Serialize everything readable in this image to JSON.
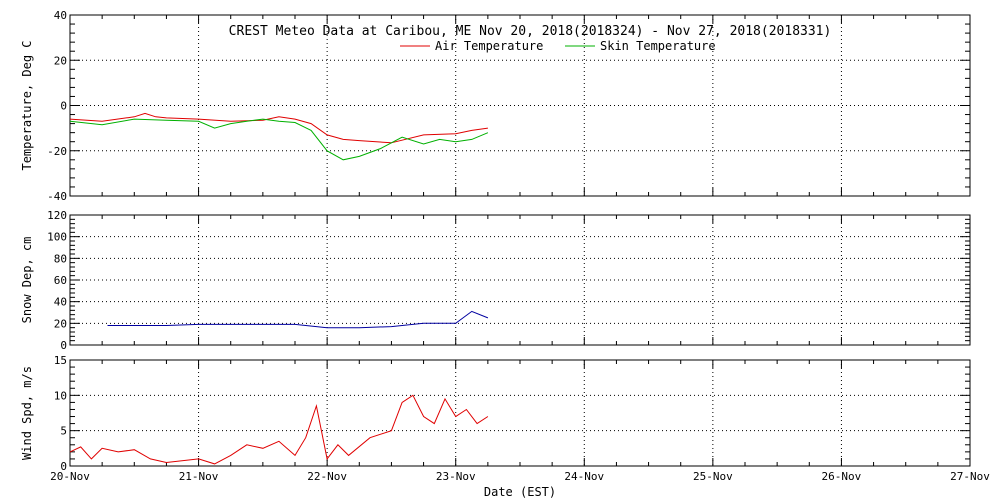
{
  "chart_data": {
    "type": "line",
    "title": "CREST Meteo Data at Caribou, ME   Nov 20, 2018(2018324) - Nov 27, 2018(2018331)",
    "xlabel": "Date (EST)",
    "x_ticks": [
      "20-Nov",
      "21-Nov",
      "22-Nov",
      "23-Nov",
      "24-Nov",
      "25-Nov",
      "26-Nov",
      "27-Nov"
    ],
    "xlim": [
      "2018-11-20",
      "2018-11-27"
    ],
    "grid": true,
    "panels": [
      {
        "ylabel": "Temperature, Deg C",
        "ylim": [
          -40,
          40
        ],
        "yticks": [
          -40,
          -20,
          0,
          20,
          40
        ],
        "legend": "top-center",
        "series": [
          {
            "name": "Air Temperature",
            "color": "#e00000",
            "x": [
              "2018-11-20 00:00",
              "2018-11-20 06:00",
              "2018-11-20 12:00",
              "2018-11-20 14:00",
              "2018-11-20 16:00",
              "2018-11-20 18:00",
              "2018-11-21 00:00",
              "2018-11-21 06:00",
              "2018-11-21 12:00",
              "2018-11-21 15:00",
              "2018-11-21 18:00",
              "2018-11-21 21:00",
              "2018-11-22 00:00",
              "2018-11-22 03:00",
              "2018-11-22 06:00",
              "2018-11-22 12:00",
              "2018-11-22 18:00",
              "2018-11-23 00:00",
              "2018-11-23 03:00",
              "2018-11-23 06:00"
            ],
            "y": [
              -6,
              -7,
              -5,
              -3.5,
              -5,
              -5.5,
              -6,
              -7,
              -6.5,
              -5,
              -6,
              -8,
              -13,
              -15,
              -15.5,
              -16.5,
              -13,
              -12.5,
              -11,
              -10
            ]
          },
          {
            "name": "Skin Temperature",
            "color": "#00b000",
            "x": [
              "2018-11-20 00:00",
              "2018-11-20 06:00",
              "2018-11-20 12:00",
              "2018-11-20 18:00",
              "2018-11-21 00:00",
              "2018-11-21 03:00",
              "2018-11-21 06:00",
              "2018-11-21 09:00",
              "2018-11-21 12:00",
              "2018-11-21 15:00",
              "2018-11-21 18:00",
              "2018-11-21 21:00",
              "2018-11-22 00:00",
              "2018-11-22 03:00",
              "2018-11-22 06:00",
              "2018-11-22 10:00",
              "2018-11-22 14:00",
              "2018-11-22 18:00",
              "2018-11-22 21:00",
              "2018-11-23 00:00",
              "2018-11-23 03:00",
              "2018-11-23 06:00"
            ],
            "y": [
              -7,
              -8.5,
              -6,
              -6.5,
              -7,
              -10,
              -8,
              -7,
              -6,
              -7,
              -7.5,
              -11,
              -20,
              -24,
              -22.5,
              -19,
              -14,
              -17,
              -15,
              -16,
              -15,
              -12
            ]
          }
        ]
      },
      {
        "ylabel": "Snow Dep, cm",
        "ylim": [
          0,
          120
        ],
        "yticks": [
          0,
          20,
          40,
          60,
          80,
          100,
          120
        ],
        "series": [
          {
            "name": "",
            "color": "#0000a0",
            "x": [
              "2018-11-20 07:00",
              "2018-11-20 12:00",
              "2018-11-20 18:00",
              "2018-11-21 00:00",
              "2018-11-21 06:00",
              "2018-11-21 12:00",
              "2018-11-21 18:00",
              "2018-11-22 00:00",
              "2018-11-22 06:00",
              "2018-11-22 12:00",
              "2018-11-22 18:00",
              "2018-11-23 00:00",
              "2018-11-23 03:00",
              "2018-11-23 06:00"
            ],
            "y": [
              18,
              18,
              18,
              19,
              19,
              19,
              19,
              16,
              16,
              17,
              20,
              20,
              31,
              25
            ]
          }
        ]
      },
      {
        "ylabel": "Wind Spd, m/s",
        "ylim": [
          0,
          15
        ],
        "yticks": [
          0,
          5,
          10,
          15
        ],
        "series": [
          {
            "name": "",
            "color": "#e00000",
            "x": [
              "2018-11-20 00:00",
              "2018-11-20 02:00",
              "2018-11-20 04:00",
              "2018-11-20 06:00",
              "2018-11-20 09:00",
              "2018-11-20 12:00",
              "2018-11-20 15:00",
              "2018-11-20 18:00",
              "2018-11-21 00:00",
              "2018-11-21 03:00",
              "2018-11-21 06:00",
              "2018-11-21 09:00",
              "2018-11-21 12:00",
              "2018-11-21 15:00",
              "2018-11-21 18:00",
              "2018-11-21 20:00",
              "2018-11-21 22:00",
              "2018-11-22 00:00",
              "2018-11-22 02:00",
              "2018-11-22 04:00",
              "2018-11-22 08:00",
              "2018-11-22 12:00",
              "2018-11-22 14:00",
              "2018-11-22 16:00",
              "2018-11-22 18:00",
              "2018-11-22 20:00",
              "2018-11-22 22:00",
              "2018-11-23 00:00",
              "2018-11-23 02:00",
              "2018-11-23 04:00",
              "2018-11-23 06:00"
            ],
            "y": [
              2,
              2.7,
              1,
              2.5,
              2,
              2.3,
              1,
              0.5,
              1,
              0.3,
              1.5,
              3,
              2.5,
              3.5,
              1.5,
              4,
              8.5,
              1,
              3,
              1.5,
              4,
              5,
              9,
              10,
              7,
              6,
              9.5,
              7,
              8,
              6,
              7
            ]
          }
        ]
      }
    ]
  }
}
